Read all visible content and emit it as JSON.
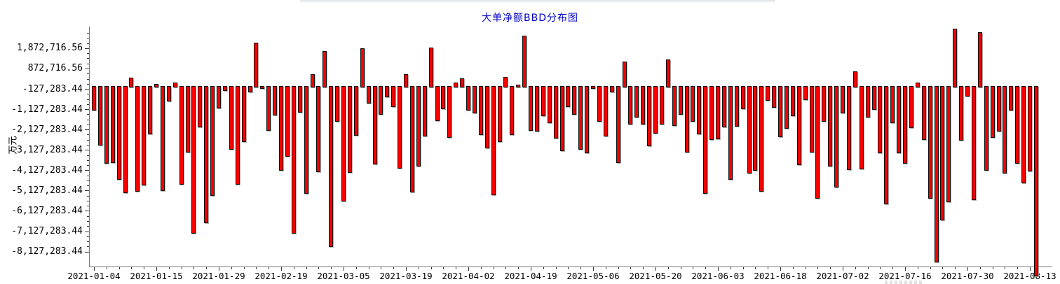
{
  "title": "大单净额BBD分布图",
  "y_axis": {
    "unit_label": "万元"
  },
  "colors": {
    "title": "#0000cc",
    "bar_fill": "#f80000",
    "bar_border": "#111111",
    "bar_shadow": "#a0a0a0",
    "axis": "#777777",
    "text": "#000000",
    "background": "#ffffff"
  },
  "chart_data": {
    "type": "bar",
    "title": "大单净额BBD分布图",
    "xlabel": "",
    "ylabel": "万元",
    "legend": "none",
    "grid": false,
    "baseline": 0,
    "ylim": [
      -9500000,
      2900000
    ],
    "y_ticks": [
      {
        "value": 1872716.56,
        "label": "1,872,716.56"
      },
      {
        "value": 872716.56,
        "label": "872,716.56"
      },
      {
        "value": -127283.44,
        "label": "-127,283.44"
      },
      {
        "value": -1127283.44,
        "label": "-1,127,283.44"
      },
      {
        "value": -2127283.44,
        "label": "-2,127,283.44"
      },
      {
        "value": -3127283.44,
        "label": "-3,127,283.44"
      },
      {
        "value": -4127283.44,
        "label": "-4,127,283.44"
      },
      {
        "value": -5127283.44,
        "label": "-5,127,283.44"
      },
      {
        "value": -6127283.44,
        "label": "-6,127,283.44"
      },
      {
        "value": -7127283.44,
        "label": "-7,127,283.44"
      },
      {
        "value": -8127283.44,
        "label": "-8,127,283.44"
      }
    ],
    "x_tick_labels": [
      "2021-01-04",
      "2021-01-15",
      "2021-01-29",
      "2021-02-19",
      "2021-03-05",
      "2021-03-19",
      "2021-04-02",
      "2021-04-19",
      "2021-05-06",
      "2021-05-20",
      "2021-06-03",
      "2021-06-18",
      "2021-07-02",
      "2021-07-16",
      "2021-07-30",
      "2021-08-13"
    ],
    "x_label_interval": 10,
    "values": [
      -1110000,
      -2860000,
      -3750000,
      -3690000,
      -4530000,
      -5180000,
      420000,
      -5130000,
      -4800000,
      -2280000,
      130000,
      -5070000,
      -680000,
      170000,
      -4760000,
      -3180000,
      -7170000,
      -1940000,
      -6680000,
      -5340000,
      -1020000,
      -160000,
      -3060000,
      -4780000,
      -2690000,
      -230000,
      2150000,
      -40000,
      -2110000,
      -1380000,
      -4100000,
      -3410000,
      -7170000,
      -1230000,
      -5220000,
      610000,
      -4150000,
      1730000,
      -7820000,
      -1670000,
      -5590000,
      -4190000,
      -2380000,
      1870000,
      -790000,
      -3790000,
      -1340000,
      -460000,
      -940000,
      -3980000,
      580000,
      -5150000,
      -3870000,
      -2400000,
      1890000,
      -1630000,
      -1060000,
      -2470000,
      170000,
      400000,
      -1110000,
      -1250000,
      -2320000,
      -2970000,
      -5300000,
      -2690000,
      470000,
      -2340000,
      70000,
      2500000,
      -2110000,
      -2150000,
      -1400000,
      -1740000,
      -2490000,
      -3120000,
      -940000,
      -1340000,
      -3060000,
      -3220000,
      -60000,
      -1690000,
      -2400000,
      -230000,
      -3690000,
      1200000,
      -1800000,
      -1460000,
      -1830000,
      -2870000,
      -2260000,
      -1800000,
      1320000,
      -1900000,
      -1320000,
      -3180000,
      -1690000,
      -2280000,
      -5220000,
      -2580000,
      -2550000,
      -1940000,
      -4530000,
      -1920000,
      -1060000,
      -4230000,
      -4070000,
      -5110000,
      -630000,
      -980000,
      -2430000,
      -2030000,
      -1400000,
      -3810000,
      -600000,
      -3180000,
      -5450000,
      -1670000,
      -3870000,
      -4900000,
      -1260000,
      -4040000,
      720000,
      -4000000,
      -1460000,
      -1080000,
      -3210000,
      -5720000,
      -1740000,
      -3240000,
      -3750000,
      -2000000,
      180000,
      -2580000,
      -5470000,
      -8590000,
      -6530000,
      -5650000,
      2840000,
      -2600000,
      -430000,
      -5530000,
      2670000,
      -4100000,
      -2470000,
      -2170000,
      -4230000,
      -1110000,
      -3750000,
      -4690000,
      -4130000,
      -9270000
    ]
  }
}
